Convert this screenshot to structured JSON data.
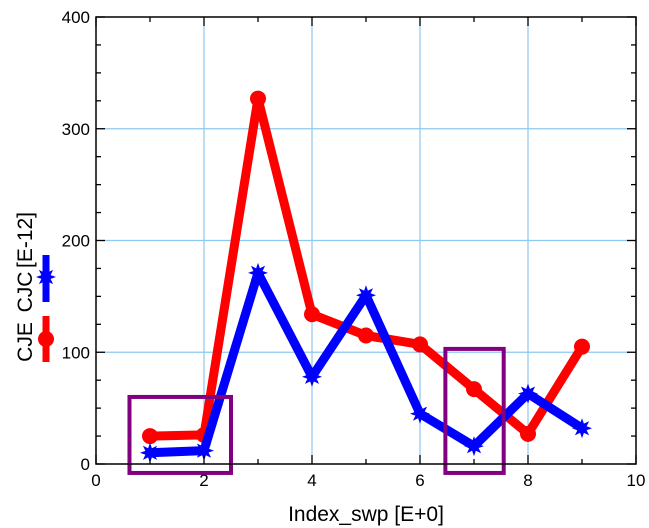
{
  "chart_data": {
    "type": "line",
    "xlabel": "Index_swp  [E+0]",
    "ylabel_prefix": "CJE  CJC  [E-12]",
    "ylabel_series": [
      "CJE",
      "CJC"
    ],
    "ylabel_unit": "[E-12]",
    "xlim": [
      0,
      10
    ],
    "ylim": [
      0,
      400
    ],
    "x_ticks": [
      0,
      2,
      4,
      6,
      8,
      10
    ],
    "y_ticks": [
      0,
      100,
      200,
      300,
      400
    ],
    "grid": true,
    "series": [
      {
        "name": "CJE",
        "color": "#ff0000",
        "marker": "circle",
        "x": [
          1,
          2,
          3,
          4,
          5,
          6,
          7,
          8,
          9
        ],
        "y": [
          25,
          26,
          327,
          134,
          115,
          107,
          67,
          27,
          105
        ]
      },
      {
        "name": "CJC",
        "color": "#0000ff",
        "marker": "star",
        "x": [
          1,
          2,
          3,
          4,
          5,
          6,
          7,
          8,
          9
        ],
        "y": [
          10,
          12,
          171,
          78,
          151,
          45,
          16,
          63,
          32
        ]
      }
    ],
    "annotations": [
      {
        "type": "box",
        "color": "#800080",
        "x_range": [
          0.62,
          2.5
        ],
        "y_range": [
          -8,
          60
        ]
      },
      {
        "type": "box",
        "color": "#800080",
        "x_range": [
          6.47,
          7.55
        ],
        "y_range": [
          -8,
          103
        ]
      }
    ]
  }
}
